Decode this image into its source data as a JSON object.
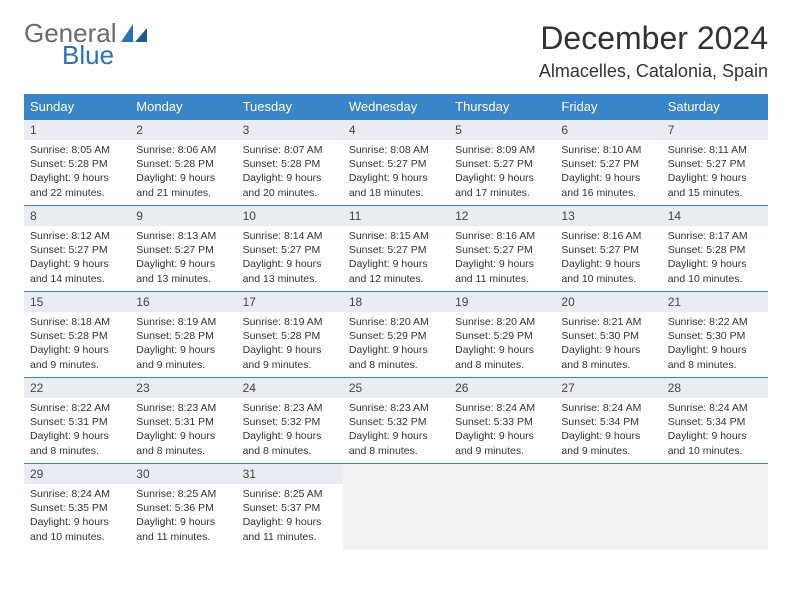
{
  "brand": {
    "word1": "General",
    "word2": "Blue",
    "logo_color": "#2a71b8",
    "text_color": "#6a6a6a"
  },
  "title": "December 2024",
  "location": "Almacelles, Catalonia, Spain",
  "header_bg": "#3a85c8",
  "daynum_bg": "#e9edf1",
  "border_color": "#3a85c8",
  "weekdays": [
    "Sunday",
    "Monday",
    "Tuesday",
    "Wednesday",
    "Thursday",
    "Friday",
    "Saturday"
  ],
  "days": [
    {
      "n": "1",
      "sr": "8:05 AM",
      "ss": "5:28 PM",
      "dl": "9 hours and 22 minutes."
    },
    {
      "n": "2",
      "sr": "8:06 AM",
      "ss": "5:28 PM",
      "dl": "9 hours and 21 minutes."
    },
    {
      "n": "3",
      "sr": "8:07 AM",
      "ss": "5:28 PM",
      "dl": "9 hours and 20 minutes."
    },
    {
      "n": "4",
      "sr": "8:08 AM",
      "ss": "5:27 PM",
      "dl": "9 hours and 18 minutes."
    },
    {
      "n": "5",
      "sr": "8:09 AM",
      "ss": "5:27 PM",
      "dl": "9 hours and 17 minutes."
    },
    {
      "n": "6",
      "sr": "8:10 AM",
      "ss": "5:27 PM",
      "dl": "9 hours and 16 minutes."
    },
    {
      "n": "7",
      "sr": "8:11 AM",
      "ss": "5:27 PM",
      "dl": "9 hours and 15 minutes."
    },
    {
      "n": "8",
      "sr": "8:12 AM",
      "ss": "5:27 PM",
      "dl": "9 hours and 14 minutes."
    },
    {
      "n": "9",
      "sr": "8:13 AM",
      "ss": "5:27 PM",
      "dl": "9 hours and 13 minutes."
    },
    {
      "n": "10",
      "sr": "8:14 AM",
      "ss": "5:27 PM",
      "dl": "9 hours and 13 minutes."
    },
    {
      "n": "11",
      "sr": "8:15 AM",
      "ss": "5:27 PM",
      "dl": "9 hours and 12 minutes."
    },
    {
      "n": "12",
      "sr": "8:16 AM",
      "ss": "5:27 PM",
      "dl": "9 hours and 11 minutes."
    },
    {
      "n": "13",
      "sr": "8:16 AM",
      "ss": "5:27 PM",
      "dl": "9 hours and 10 minutes."
    },
    {
      "n": "14",
      "sr": "8:17 AM",
      "ss": "5:28 PM",
      "dl": "9 hours and 10 minutes."
    },
    {
      "n": "15",
      "sr": "8:18 AM",
      "ss": "5:28 PM",
      "dl": "9 hours and 9 minutes."
    },
    {
      "n": "16",
      "sr": "8:19 AM",
      "ss": "5:28 PM",
      "dl": "9 hours and 9 minutes."
    },
    {
      "n": "17",
      "sr": "8:19 AM",
      "ss": "5:28 PM",
      "dl": "9 hours and 9 minutes."
    },
    {
      "n": "18",
      "sr": "8:20 AM",
      "ss": "5:29 PM",
      "dl": "9 hours and 8 minutes."
    },
    {
      "n": "19",
      "sr": "8:20 AM",
      "ss": "5:29 PM",
      "dl": "9 hours and 8 minutes."
    },
    {
      "n": "20",
      "sr": "8:21 AM",
      "ss": "5:30 PM",
      "dl": "9 hours and 8 minutes."
    },
    {
      "n": "21",
      "sr": "8:22 AM",
      "ss": "5:30 PM",
      "dl": "9 hours and 8 minutes."
    },
    {
      "n": "22",
      "sr": "8:22 AM",
      "ss": "5:31 PM",
      "dl": "9 hours and 8 minutes."
    },
    {
      "n": "23",
      "sr": "8:23 AM",
      "ss": "5:31 PM",
      "dl": "9 hours and 8 minutes."
    },
    {
      "n": "24",
      "sr": "8:23 AM",
      "ss": "5:32 PM",
      "dl": "9 hours and 8 minutes."
    },
    {
      "n": "25",
      "sr": "8:23 AM",
      "ss": "5:32 PM",
      "dl": "9 hours and 8 minutes."
    },
    {
      "n": "26",
      "sr": "8:24 AM",
      "ss": "5:33 PM",
      "dl": "9 hours and 9 minutes."
    },
    {
      "n": "27",
      "sr": "8:24 AM",
      "ss": "5:34 PM",
      "dl": "9 hours and 9 minutes."
    },
    {
      "n": "28",
      "sr": "8:24 AM",
      "ss": "5:34 PM",
      "dl": "9 hours and 10 minutes."
    },
    {
      "n": "29",
      "sr": "8:24 AM",
      "ss": "5:35 PM",
      "dl": "9 hours and 10 minutes."
    },
    {
      "n": "30",
      "sr": "8:25 AM",
      "ss": "5:36 PM",
      "dl": "9 hours and 11 minutes."
    },
    {
      "n": "31",
      "sr": "8:25 AM",
      "ss": "5:37 PM",
      "dl": "9 hours and 11 minutes."
    }
  ],
  "labels": {
    "sunrise": "Sunrise:",
    "sunset": "Sunset:",
    "daylight": "Daylight:"
  },
  "first_weekday_index": 0,
  "trailing_empty": 4
}
